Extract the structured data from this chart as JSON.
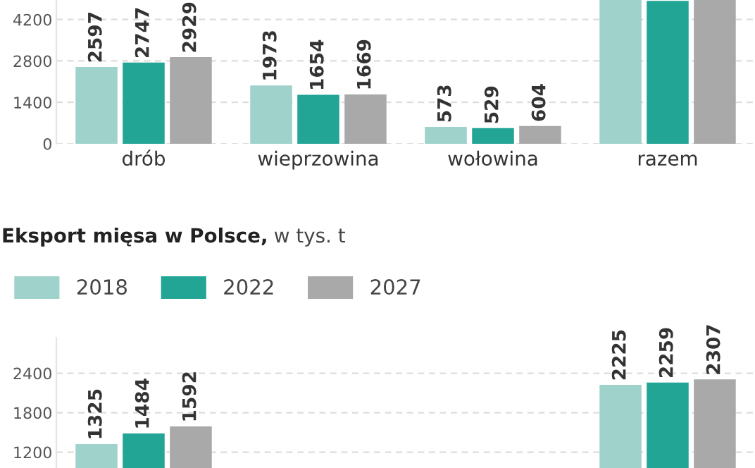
{
  "chart_data": [
    {
      "type": "bar",
      "categories": [
        "drób",
        "wieprzowina",
        "wołowina",
        "razem"
      ],
      "ylim": [
        0,
        4860
      ],
      "yticks": [
        0,
        1400,
        2800,
        4200
      ],
      "grid": "y",
      "legend": false,
      "series": [
        {
          "color": "#9fd2cb",
          "values": [
            2597,
            1973,
            573,
            4860
          ],
          "value_labels": [
            "2597",
            "1973",
            "573",
            null
          ]
        },
        {
          "color": "#22a594",
          "values": [
            2747,
            1654,
            529,
            4830
          ],
          "value_labels": [
            "2747",
            "1654",
            "529",
            null
          ]
        },
        {
          "color": "#a9a9a9",
          "values": [
            2929,
            1669,
            604,
            4860
          ],
          "value_labels": [
            "2929",
            "1669",
            "604",
            null
          ]
        }
      ]
    },
    {
      "type": "bar",
      "title": "Eksport mięsa w Polsce,",
      "subtitle": "w tys. t",
      "categories": [
        null,
        null,
        null,
        null
      ],
      "ylim": [
        960,
        2940
      ],
      "yticks": [
        1200,
        1800,
        2400
      ],
      "grid": "y",
      "legend": "top left",
      "tick_labels": "y",
      "series": [
        {
          "name": "2018",
          "color": "#9fd2cb",
          "values": [
            1325,
            null,
            null,
            2225
          ],
          "value_labels": [
            "1325",
            null,
            null,
            "2225"
          ]
        },
        {
          "name": "2022",
          "color": "#22a594",
          "values": [
            1484,
            null,
            null,
            2259
          ],
          "value_labels": [
            "1484",
            null,
            null,
            "2259"
          ]
        },
        {
          "name": "2027",
          "color": "#a9a9a9",
          "values": [
            1592,
            null,
            null,
            2307
          ],
          "value_labels": [
            "1592",
            null,
            null,
            "2307"
          ]
        }
      ]
    }
  ]
}
